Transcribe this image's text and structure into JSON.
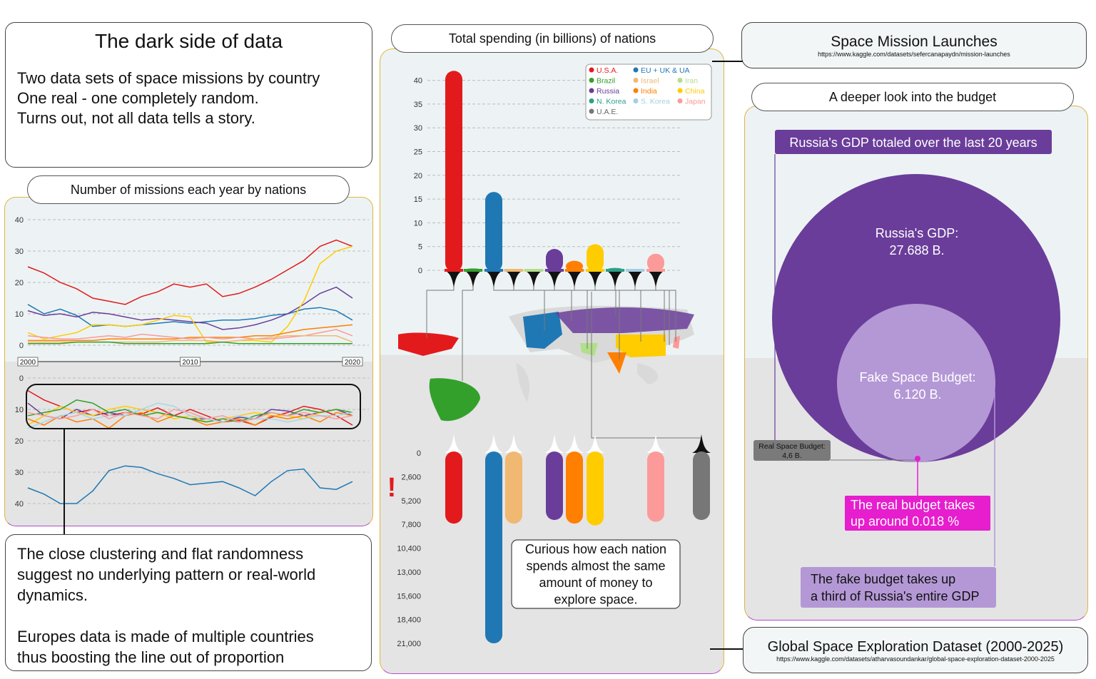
{
  "title_box": {
    "title": "The dark side of data",
    "lines": [
      "Two data sets of space missions by country",
      "One real - one completely random.",
      "Turns out, not all data tells a story."
    ]
  },
  "missions_title": "Number of missions each year by nations",
  "note": {
    "lines": [
      "The close clustering and flat randomness",
      "suggest no underlying pattern or real-world",
      "dynamics.",
      "",
      "Europes data is made of multiple countries",
      "thus boosting the line out of proportion"
    ]
  },
  "spend_title": "Total spending (in billions) of nations",
  "launch_box": {
    "title": "Space Mission Launches",
    "url": "https://www.kaggle.com/datasets/sefercanapaydn/mission-launches"
  },
  "budget_title": "A deeper look into the budget",
  "global_box": {
    "title": "Global Space Exploration Dataset (2000-2025)",
    "url": "https://www.kaggle.com/datasets/atharvasoundankar/global-space-exploration-dataset-2000-2025"
  },
  "budget": {
    "header": "Russia's GDP totaled over the last 20 years",
    "gdp_label": "Russia's GDP:",
    "gdp_value": "27.688 B.",
    "fake_label": "Fake Space Budget:",
    "fake_value": "6.120 B.",
    "real_label": "Real Space Budget:",
    "real_value": "4,6 B.",
    "real_note": [
      "The real budget takes",
      "up around 0.018 %"
    ],
    "fake_note": [
      "The fake budget takes up",
      "a third of Russia's entire GDP"
    ],
    "colors": {
      "gdp": "#6a3d9a",
      "fake": "#b498d6",
      "real_dot": "#e61ecd",
      "real_box": "#7a7a7a"
    }
  },
  "curious": [
    "Curious how each nation",
    "spends almost the same",
    "amount of money to",
    "explore space."
  ],
  "warn_mark": "!",
  "chart_data": [
    {
      "type": "line",
      "title": "Number of missions each year by nations",
      "x": [
        2000,
        2001,
        2002,
        2003,
        2004,
        2005,
        2006,
        2007,
        2008,
        2009,
        2010,
        2011,
        2012,
        2013,
        2014,
        2015,
        2016,
        2017,
        2018,
        2019,
        2020
      ],
      "xticks": [
        "2000",
        "2010",
        "2020"
      ],
      "yticks": [
        "0",
        "10",
        "20",
        "30",
        "40"
      ],
      "ylim": [
        0,
        40
      ],
      "series": [
        {
          "color": "#e31a1c",
          "values": [
            25,
            23,
            20,
            18,
            15,
            14,
            13,
            15.5,
            17,
            19.5,
            18.5,
            19.5,
            15.5,
            16.5,
            18.5,
            21,
            24,
            27,
            31.5,
            33.5,
            31.5
          ]
        },
        {
          "color": "#1f78b4",
          "values": [
            13,
            10,
            11.5,
            9.5,
            6,
            6.5,
            6,
            6.5,
            7,
            7.5,
            7,
            7.5,
            8,
            8,
            8.5,
            9.5,
            10,
            11.5,
            12,
            11,
            8
          ]
        },
        {
          "color": "#6a3d9a",
          "values": [
            11,
            9.5,
            10,
            9,
            10.5,
            10,
            9,
            8,
            8.5,
            8,
            7.5,
            7,
            5,
            5.5,
            6.5,
            8,
            10,
            13,
            16.5,
            18.5,
            15
          ]
        },
        {
          "color": "#ffcc00",
          "values": [
            4,
            2,
            3,
            4,
            6.5,
            6.5,
            6,
            6.5,
            8,
            9.5,
            9,
            1,
            1,
            1.5,
            1.5,
            1,
            6,
            14,
            26,
            30,
            31.5
          ]
        },
        {
          "color": "#ff7f00",
          "values": [
            1.5,
            1.5,
            1.5,
            1.5,
            1.5,
            2,
            2,
            2,
            2,
            2,
            2.5,
            2.5,
            2.5,
            2.5,
            3,
            3,
            4,
            5,
            5.5,
            6,
            6.5
          ]
        },
        {
          "color": "#fb9a99",
          "values": [
            3,
            2.5,
            2,
            2,
            2.5,
            3,
            2.5,
            3.5,
            3,
            2.5,
            2,
            2.5,
            2,
            2.5,
            2,
            2,
            2.5,
            3,
            4,
            5,
            3
          ]
        },
        {
          "color": "#f0b870",
          "values": [
            1,
            1,
            1,
            1,
            1,
            1,
            1,
            1,
            1,
            1.5,
            1.5,
            1.5,
            1,
            1.5,
            2,
            2.5,
            3,
            3,
            3,
            3,
            1
          ]
        },
        {
          "color": "#33a02c",
          "values": [
            0.5,
            0.5,
            0.5,
            1,
            1,
            1,
            0.5,
            0.5,
            0.5,
            0.5,
            0.5,
            0.5,
            1,
            0.5,
            0.5,
            0.5,
            0.5,
            0.5,
            0.5,
            0.5,
            0.5
          ]
        }
      ]
    },
    {
      "type": "line",
      "title": "",
      "x": [
        2000,
        2001,
        2002,
        2003,
        2004,
        2005,
        2006,
        2007,
        2008,
        2009,
        2010,
        2011,
        2012,
        2013,
        2014,
        2015,
        2016,
        2017,
        2018,
        2019,
        2020
      ],
      "yticks": [
        "0",
        "10",
        "20",
        "30",
        "40"
      ],
      "ylim": [
        0,
        40
      ],
      "inverted": true,
      "series": [
        {
          "color": "#e31a1c",
          "values": [
            4,
            7,
            9,
            11,
            10,
            12,
            11,
            11.5,
            9.5,
            12,
            10,
            12,
            14,
            13.5,
            15,
            12.5,
            11,
            9,
            10,
            12,
            15
          ]
        },
        {
          "color": "#1f78b4",
          "values": [
            35,
            37,
            40,
            40,
            36,
            29.5,
            28,
            28.5,
            30.5,
            32,
            34,
            33.5,
            33,
            35,
            37.5,
            33,
            29.5,
            29,
            35,
            35.5,
            33
          ]
        },
        {
          "color": "#6a3d9a",
          "values": [
            8,
            12,
            13,
            10,
            12,
            11,
            12,
            10,
            11,
            12,
            13,
            13,
            14,
            12.5,
            13,
            10,
            10.5,
            12,
            11,
            10,
            12
          ]
        },
        {
          "color": "#ffcc00",
          "values": [
            15,
            12,
            9,
            11,
            12,
            10,
            9,
            10,
            11,
            13,
            12,
            14,
            13,
            12,
            11,
            12,
            12,
            13,
            11,
            10,
            11
          ]
        },
        {
          "color": "#ff7f00",
          "values": [
            13,
            15,
            12,
            14,
            13,
            16,
            12,
            11,
            14,
            12,
            13,
            15,
            14,
            13,
            15,
            12,
            13,
            12,
            14,
            11,
            12
          ]
        },
        {
          "color": "#33a02c",
          "values": [
            12,
            11,
            10,
            7,
            8,
            11,
            10,
            12,
            11,
            12,
            13,
            14,
            13,
            14,
            12,
            11,
            12,
            10,
            11,
            10,
            11
          ]
        },
        {
          "color": "#a6d7e8",
          "values": [
            16,
            14,
            12,
            11,
            13,
            12,
            12,
            10,
            8,
            9,
            12,
            13,
            14,
            12,
            13,
            13,
            14,
            13,
            12,
            12,
            11
          ]
        },
        {
          "color": "#fb9a99",
          "values": [
            11,
            12,
            13,
            12,
            10,
            13,
            11,
            12,
            13,
            10,
            11,
            13,
            12,
            14,
            13,
            11,
            12,
            11,
            12,
            13,
            12
          ]
        }
      ]
    },
    {
      "type": "bar",
      "title": "Total spending (in billions) of nations",
      "categories": [
        "U.S.A.",
        "Brazil",
        "EU + UK & UA",
        "Israel",
        "Iran",
        "Russia",
        "India",
        "China",
        "N. Korea",
        "S. Korea",
        "Japan",
        "U.A.E."
      ],
      "values": [
        42,
        0.4,
        16.5,
        0.3,
        0.3,
        4.5,
        2,
        5.5,
        0.5,
        0.3,
        3.5,
        0
      ],
      "colors": [
        "#e31a1c",
        "#33a02c",
        "#1f78b4",
        "#f0b870",
        "#b2df8a",
        "#6a3d9a",
        "#ff7f00",
        "#ffcc00",
        "#2ca087",
        "#a6cee3",
        "#fb9a99",
        "#777777"
      ],
      "yticks": [
        "0",
        "5",
        "10",
        "15",
        "20",
        "25",
        "30",
        "35",
        "40"
      ],
      "ylim": [
        0,
        42
      ],
      "legend_position": "top-right"
    },
    {
      "type": "bar",
      "title": "",
      "inverted": true,
      "categories": [
        "U.S.A.",
        "Brazil",
        "EU + UK & UA",
        "Israel",
        "Iran",
        "Russia",
        "India",
        "China",
        "N. Korea",
        "S. Korea",
        "Japan",
        "U.A.E."
      ],
      "values": [
        7800,
        0,
        21000,
        7800,
        0,
        7400,
        7800,
        8000,
        0,
        0,
        7600,
        7400
      ],
      "colors": [
        "#e31a1c",
        "#33a02c",
        "#1f78b4",
        "#f0b870",
        "#b2df8a",
        "#6a3d9a",
        "#ff7f00",
        "#ffcc00",
        "#2ca087",
        "#a6cee3",
        "#fb9a99",
        "#777777"
      ],
      "yticks": [
        "0",
        "2,600",
        "5,200",
        "7,800",
        "10,400",
        "13,000",
        "15,600",
        "18,400",
        "21,000"
      ],
      "ylim": [
        0,
        21000
      ]
    }
  ]
}
